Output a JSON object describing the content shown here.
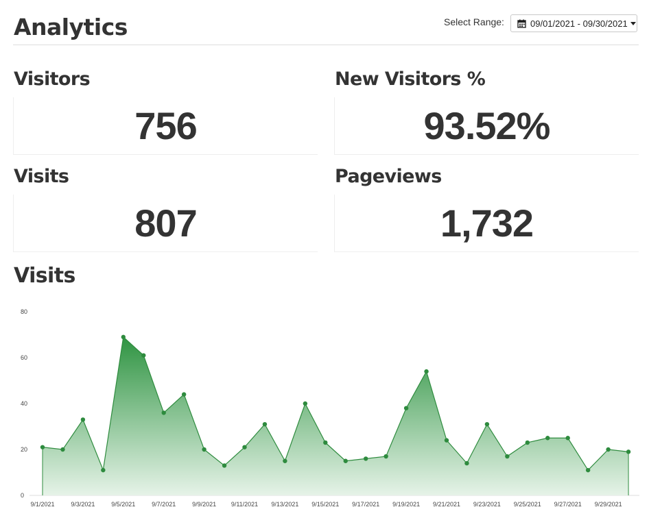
{
  "header": {
    "title": "Analytics",
    "range_label": "Select Range:",
    "range_value": "09/01/2021 - 09/30/2021",
    "calendar_icon": "calendar-icon",
    "caret_icon": "caret-down-icon"
  },
  "stats": {
    "visitors": {
      "label": "Visitors",
      "value": "756"
    },
    "new_visitors": {
      "label": "New Visitors %",
      "value": "93.52%"
    },
    "visits": {
      "label": "Visits",
      "value": "807"
    },
    "pageviews": {
      "label": "Pageviews",
      "value": "1,732"
    }
  },
  "chart": {
    "title": "Visits"
  },
  "colors": {
    "line": "#2e8b3e",
    "fill_top": "#2f9442",
    "fill_bottom": "#e6f3e8",
    "text": "#333333"
  },
  "chart_data": {
    "type": "area",
    "title": "",
    "xlabel": "",
    "ylabel": "",
    "ylim": [
      0,
      80
    ],
    "yticks": [
      0,
      20,
      40,
      60,
      80
    ],
    "x": [
      "9/1/2021",
      "9/2/2021",
      "9/3/2021",
      "9/4/2021",
      "9/5/2021",
      "9/6/2021",
      "9/7/2021",
      "9/8/2021",
      "9/9/2021",
      "9/10/2021",
      "9/11/2021",
      "9/12/2021",
      "9/13/2021",
      "9/14/2021",
      "9/15/2021",
      "9/16/2021",
      "9/17/2021",
      "9/18/2021",
      "9/19/2021",
      "9/20/2021",
      "9/21/2021",
      "9/22/2021",
      "9/23/2021",
      "9/24/2021",
      "9/25/2021",
      "9/26/2021",
      "9/27/2021",
      "9/28/2021",
      "9/29/2021",
      "9/30/2021"
    ],
    "xtick_labels": [
      "9/1/2021",
      "9/3/2021",
      "9/5/2021",
      "9/7/2021",
      "9/9/2021",
      "9/11/2021",
      "9/13/2021",
      "9/15/2021",
      "9/17/2021",
      "9/19/2021",
      "9/21/2021",
      "9/23/2021",
      "9/25/2021",
      "9/27/2021",
      "9/29/2021"
    ],
    "series": [
      {
        "values": [
          21,
          20,
          33,
          11,
          69,
          61,
          36,
          44,
          20,
          13,
          21,
          31,
          15,
          40,
          23,
          15,
          16,
          17,
          38,
          54,
          24,
          14,
          31,
          17,
          23,
          25,
          25,
          11,
          20,
          19
        ]
      }
    ],
    "grid": false,
    "legend": "none"
  }
}
